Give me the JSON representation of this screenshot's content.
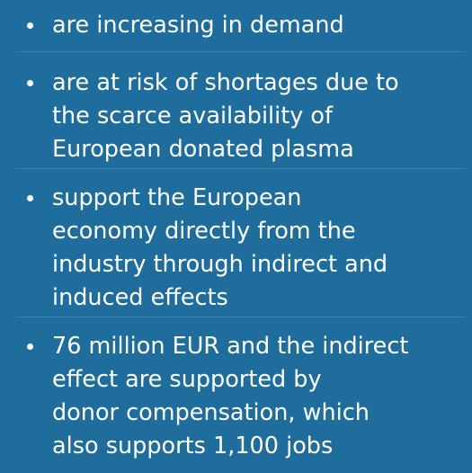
{
  "items": [
    {
      "lines": [
        "are increasing in demand"
      ]
    },
    {
      "lines": [
        "are at risk of shortages due to",
        "the scarce availability of",
        "European donated plasma"
      ]
    },
    {
      "lines": [
        "support the European",
        "economy directly from the",
        "industry through indirect and",
        "induced effects"
      ]
    },
    {
      "lines": [
        "76 million EUR and the indirect",
        "effect are supported by",
        "donor compensation, which",
        "also supports 1,100 jobs"
      ]
    }
  ]
}
